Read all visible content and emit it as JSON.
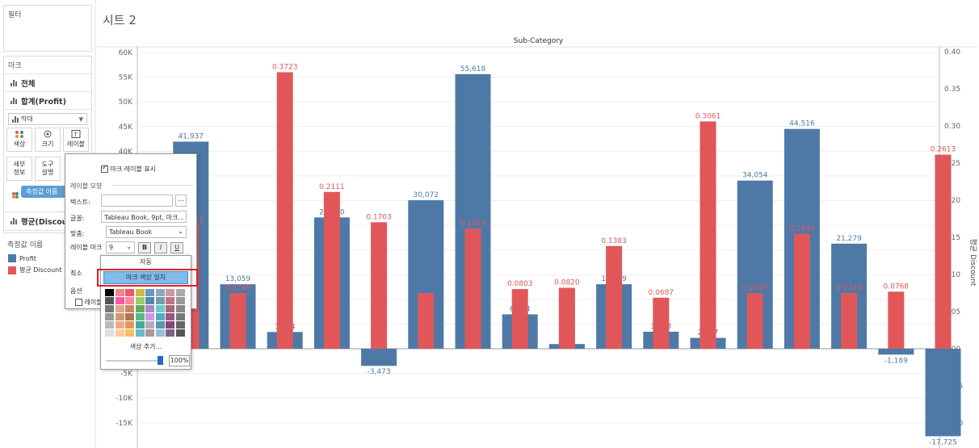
{
  "sheet_title": "시트 2",
  "filters_pane": {
    "title": "필터"
  },
  "marks_pane": {
    "title": "마크",
    "rows": [
      "전체",
      "합계(Profit)"
    ],
    "mark_type": "막대",
    "buttons": [
      {
        "label": "색상",
        "icon": "color-dots-icon"
      },
      {
        "label": "크기",
        "icon": "size-icon"
      },
      {
        "label": "레이블",
        "icon": "label-icon"
      },
      {
        "label": "세부\n정보",
        "icon": "detail-icon"
      },
      {
        "label": "도구\n설명",
        "icon": "tooltip-icon"
      }
    ],
    "pill": "측정값 이름",
    "avg_row": "평균(Discount)"
  },
  "legend": {
    "title": "측정값 이름",
    "items": [
      {
        "label": "Profit",
        "color": "#4E79A7"
      },
      {
        "label": "평균 Discount",
        "color": "#E15759"
      }
    ]
  },
  "label_popup": {
    "show_labels": "마크 레이블 표시",
    "section": "레이블 모양",
    "text_label": "텍스트:",
    "font_label": "글꼴:",
    "font_value": "Tableau Book, 9pt, 마크...",
    "align_label": "맞춤:",
    "font_name": "Tableau Book",
    "font_size": "9",
    "bold": "B",
    "italic": "I",
    "underline": "U",
    "mark_label_short": "레이블 마크",
    "min_short": "최소",
    "options_short": "옵션",
    "label_checkbox_short": "레이블",
    "text_field_button": "..."
  },
  "color_palette": {
    "auto": "자동",
    "match_mark_color": "마크 색상 일치",
    "more_colors": "색상 추가...",
    "opacity": "100%"
  },
  "chart_data": {
    "type": "bar",
    "title": "Sub-Category",
    "y_left_ticks": [
      "60K",
      "55K",
      "50K",
      "45K",
      "40K",
      "35K",
      "30K",
      "25K",
      "20K",
      "15K",
      "10K",
      "5K",
      "0K",
      "-5K",
      "-10K",
      "-15K"
    ],
    "y_right_title": "평균 Discount",
    "y_right_ticks": [
      "0.40",
      "0.35",
      "0.30",
      "0.25",
      "0.20",
      "0.15",
      "0.10",
      "0.05",
      "0.00",
      "-0.05",
      "-0.10"
    ],
    "ylim_left": [
      -20000,
      60000
    ],
    "ylim_right": [
      -0.15,
      0.4
    ],
    "series": [
      {
        "name": "Profit",
        "color": "#4E79A7",
        "values": [
          18138,
          41937,
          13059,
          3384,
          26590,
          -3473,
          30072,
          55618,
          6964,
          949,
          13059,
          3443,
          2197,
          34054,
          44516,
          21279,
          -1189,
          -17725
        ],
        "labels": [
          "",
          "41,937",
          "13,059",
          "3,384",
          "26,590",
          "-3,473",
          "30,072",
          "55,618",
          "6,964",
          "949",
          "13,059",
          "3,443",
          "2,197",
          "34,054",
          "44,516",
          "21,279",
          "-1,189",
          "-17,725"
        ]
      },
      {
        "name": "평균 Discount",
        "color": "#E15759",
        "values": [
          0.0,
          0.1665,
          0.0749,
          0.3723,
          0.2111,
          0.1703,
          0.0749,
          0.1618,
          0.0803,
          0.082,
          0.1383,
          0.0687,
          0.3061,
          0.0749,
          0.1546,
          0.0749,
          0.0768,
          0.2613
        ],
        "labels": [
          "",
          "0.1665",
          "0.0749",
          "0.3723",
          "0.2111",
          "0.1703",
          "",
          "0.1618",
          "0.0803",
          "0.0820",
          "0.1383",
          "0.0687",
          "0.3061",
          "0.0749",
          "0.1546",
          "0.0749",
          "0.0768",
          "0.2613"
        ]
      }
    ]
  }
}
